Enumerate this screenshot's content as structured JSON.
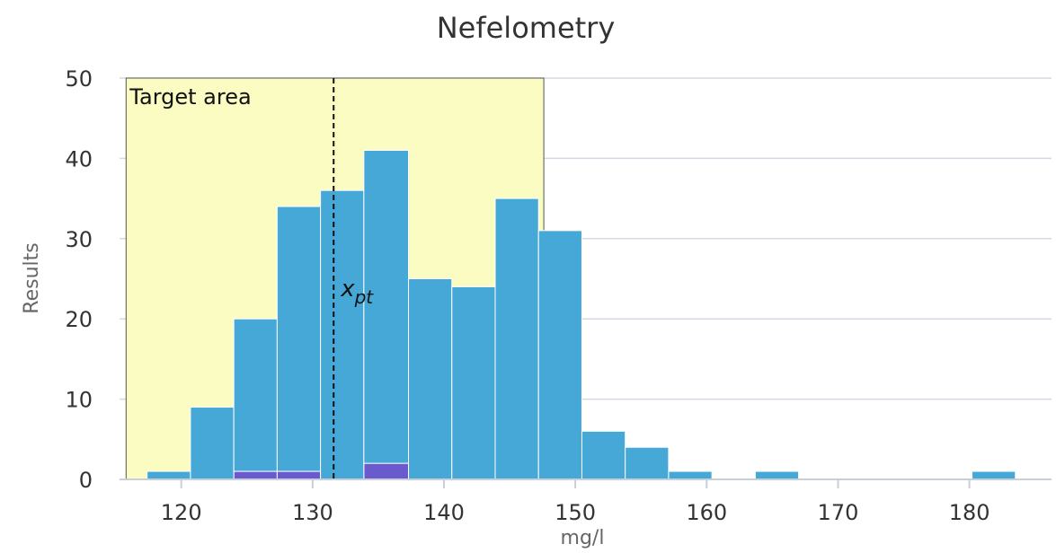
{
  "chart_data": {
    "type": "bar",
    "title": "Nefelometry",
    "xlabel": "mg/l",
    "ylabel": "Results",
    "xlim": [
      115.3,
      184.2
    ],
    "ylim": [
      0,
      50
    ],
    "x_ticks": [
      120,
      130,
      140,
      150,
      160,
      170,
      180
    ],
    "y_ticks": [
      0,
      10,
      20,
      30,
      40,
      50
    ],
    "grid": true,
    "bin_edges": [
      117.4,
      120.7,
      124.0,
      127.3,
      130.6,
      133.9,
      137.3,
      140.6,
      143.9,
      147.2,
      150.5,
      153.8,
      157.1,
      160.4,
      163.7,
      167.0,
      170.3,
      173.6,
      176.9,
      180.2,
      183.5
    ],
    "series": [
      {
        "values": [
          1,
          9,
          19,
          33,
          36,
          39,
          25,
          24,
          35,
          31,
          6,
          4,
          1,
          0,
          1,
          0,
          0,
          0,
          0,
          1
        ],
        "color": "#45a8d6"
      },
      {
        "values": [
          0,
          0,
          1,
          1,
          0,
          2,
          0,
          0,
          0,
          0,
          0,
          0,
          0,
          0,
          0,
          0,
          0,
          0,
          0,
          0
        ],
        "color": "#6a5acd"
      }
    ],
    "target_area": {
      "label": "Target area",
      "from": 115.8,
      "to": 147.6,
      "color": "#fafcc2"
    },
    "reference_line": {
      "label": "x",
      "subscript": "pt",
      "x": 131.6,
      "style": "dashed"
    }
  }
}
